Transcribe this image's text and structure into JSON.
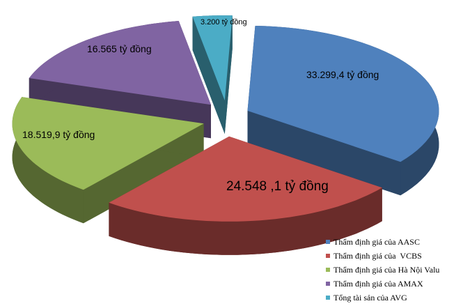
{
  "chart_data": {
    "type": "pie",
    "categories": [
      "Thẩm định giá của AASC",
      "Thẩm định giá của  VCBS",
      "Thẩm định giá của Hà Nội Valu",
      "Thẩm định giá của AMAX",
      "Tổng tài sản của AVG"
    ],
    "values": [
      33299.4,
      24548.1,
      18519.9,
      16565,
      3200
    ],
    "value_labels": [
      "33.299,4 tỷ đồng",
      "24.548 ,1 tỷ đồng",
      "18.519,9 tỷ đồng",
      "16.565 tỷ đồng",
      "3.200 tỷ đồng"
    ],
    "colors": [
      "#4f81bd",
      "#c0504d",
      "#9bbb59",
      "#8064a2",
      "#4bacc6"
    ]
  }
}
